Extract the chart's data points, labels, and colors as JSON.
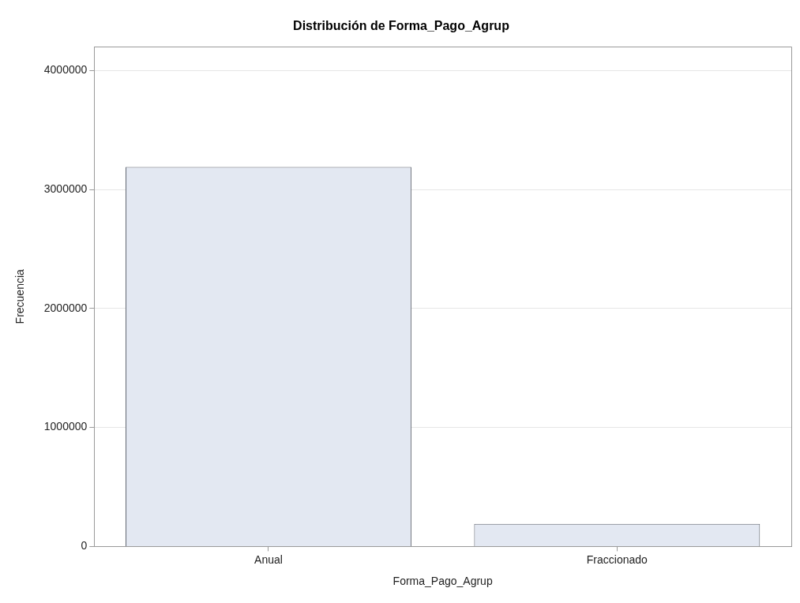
{
  "chart_data": {
    "type": "bar",
    "title": "Distribución de Forma_Pago_Agrup",
    "xlabel": "Forma_Pago_Agrup",
    "ylabel": "Frecuencia",
    "categories": [
      "Anual",
      "Fraccionado"
    ],
    "values": [
      3190000,
      190000
    ],
    "color": "#e3e8f2",
    "ylim": [
      0,
      4200000
    ],
    "yticks": [
      0,
      1000000,
      2000000,
      3000000,
      4000000
    ],
    "grid": "y"
  }
}
